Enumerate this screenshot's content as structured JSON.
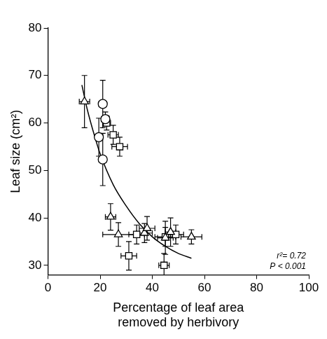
{
  "chart_data": {
    "type": "scatter",
    "x_label": "Percentage of leaf area removed by herbivory",
    "y_label": "Leaf size (cm²)",
    "xlim": [
      0,
      100
    ],
    "xticks": [
      0,
      20,
      40,
      60,
      80,
      100
    ],
    "ylim": [
      28,
      80
    ],
    "yticks": [
      30,
      40,
      50,
      60,
      70,
      80
    ],
    "grid": false,
    "annotations": [
      "r²= 0.72",
      "P < 0.001"
    ],
    "series": [
      {
        "marker": "triangle",
        "color": "#000000",
        "x": [
          14,
          24,
          27,
          37,
          38,
          45,
          47,
          55
        ],
        "values": [
          64.5,
          40.2,
          36.5,
          36.8,
          37.8,
          35.8,
          37,
          36
        ],
        "x_error": [
          2,
          2,
          6,
          3,
          3,
          3,
          2,
          4
        ],
        "y_error": [
          5.5,
          2.8,
          2.5,
          2,
          2.5,
          3.5,
          3,
          1.5
        ]
      },
      {
        "marker": "circle",
        "color": "#000000",
        "x": [
          21,
          19.5,
          21,
          22
        ],
        "values": [
          64,
          57,
          52.3,
          60.8
        ],
        "x_error": [
          1.5,
          1.5,
          1.5,
          1.5
        ],
        "y_error": [
          5,
          4,
          5.5,
          1.5
        ]
      },
      {
        "marker": "square",
        "color": "#000000",
        "x": [
          22.5,
          25,
          27.5,
          31,
          34,
          45,
          49,
          44.5
        ],
        "values": [
          60,
          57.5,
          55,
          32,
          36.5,
          36,
          36.5,
          30
        ],
        "x_error": [
          1.5,
          2,
          3,
          3,
          3,
          4,
          3,
          2
        ],
        "y_error": [
          1.5,
          2,
          2,
          3,
          2,
          2,
          2,
          2.5
        ]
      },
      {
        "type": "line",
        "line_style": "solid",
        "color": "#000000",
        "x": [
          13,
          15,
          18,
          20,
          25,
          30,
          35,
          40,
          45,
          50,
          55
        ],
        "values": [
          68,
          63,
          57,
          53.5,
          47,
          42.5,
          38.8,
          36,
          34,
          32.5,
          31.5
        ]
      }
    ]
  }
}
